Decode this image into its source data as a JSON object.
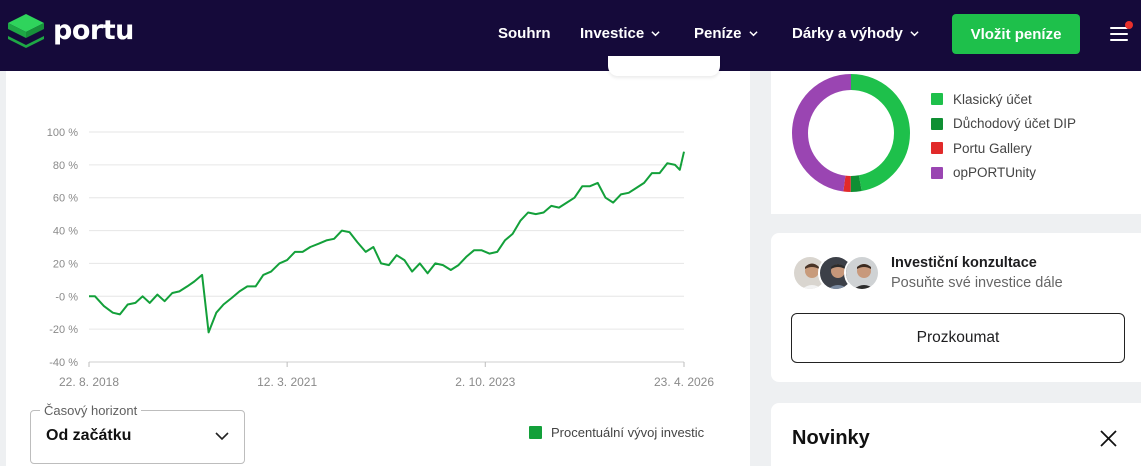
{
  "header": {
    "logo_text": "portu",
    "nav": [
      {
        "label": "Souhrn",
        "dropdown": false
      },
      {
        "label": "Investice",
        "dropdown": true
      },
      {
        "label": "Peníze",
        "dropdown": true
      },
      {
        "label": "Dárky a výhody",
        "dropdown": true
      }
    ],
    "cta_label": "Vložit peníze",
    "menu_icon": "hamburger-icon",
    "notification_dot": true
  },
  "chart_data": {
    "type": "line",
    "title": "",
    "xlabel": "",
    "ylabel": "",
    "ylim": [
      -40,
      100
    ],
    "yticks": [
      100,
      80,
      60,
      40,
      20,
      0,
      -20,
      -40
    ],
    "ytick_labels": [
      "100 %",
      "80 %",
      "60 %",
      "40 %",
      "20 %",
      "-0 %",
      "-20 %",
      "-40 %"
    ],
    "xticks": [
      0,
      0.333,
      0.666,
      1.0
    ],
    "xtick_labels": [
      "22. 8. 2018",
      "12. 3. 2021",
      "2. 10. 2023",
      "23. 4. 2026"
    ],
    "xrange": [
      "2018-08-22",
      "2026-04-23"
    ],
    "grid": "horizontal",
    "series": [
      {
        "name": "Procentuální vývoj investic",
        "color": "#13a03a",
        "points": [
          [
            0.0,
            0
          ],
          [
            0.01,
            0
          ],
          [
            0.025,
            -6
          ],
          [
            0.04,
            -10
          ],
          [
            0.052,
            -11
          ],
          [
            0.065,
            -5
          ],
          [
            0.078,
            -4
          ],
          [
            0.09,
            0
          ],
          [
            0.102,
            -4
          ],
          [
            0.115,
            1
          ],
          [
            0.127,
            -3
          ],
          [
            0.14,
            2
          ],
          [
            0.152,
            3
          ],
          [
            0.165,
            6
          ],
          [
            0.177,
            9
          ],
          [
            0.19,
            13
          ],
          [
            0.201,
            -22
          ],
          [
            0.214,
            -10
          ],
          [
            0.226,
            -5
          ],
          [
            0.24,
            -1
          ],
          [
            0.253,
            3
          ],
          [
            0.266,
            6
          ],
          [
            0.28,
            6
          ],
          [
            0.293,
            13
          ],
          [
            0.306,
            15
          ],
          [
            0.32,
            20
          ],
          [
            0.333,
            22
          ],
          [
            0.346,
            27
          ],
          [
            0.359,
            27
          ],
          [
            0.372,
            30
          ],
          [
            0.386,
            32
          ],
          [
            0.399,
            34
          ],
          [
            0.412,
            35
          ],
          [
            0.425,
            40
          ],
          [
            0.438,
            39
          ],
          [
            0.451,
            33
          ],
          [
            0.465,
            27
          ],
          [
            0.478,
            30
          ],
          [
            0.491,
            20
          ],
          [
            0.504,
            19
          ],
          [
            0.517,
            25
          ],
          [
            0.53,
            22
          ],
          [
            0.543,
            15
          ],
          [
            0.556,
            20
          ],
          [
            0.569,
            14
          ],
          [
            0.582,
            20
          ],
          [
            0.595,
            19
          ],
          [
            0.608,
            16
          ],
          [
            0.621,
            19
          ],
          [
            0.634,
            24
          ],
          [
            0.647,
            28
          ],
          [
            0.66,
            28
          ],
          [
            0.673,
            26
          ],
          [
            0.686,
            27
          ],
          [
            0.699,
            34
          ],
          [
            0.712,
            38
          ],
          [
            0.725,
            46
          ],
          [
            0.738,
            51
          ],
          [
            0.751,
            50
          ],
          [
            0.764,
            51
          ],
          [
            0.777,
            55
          ],
          [
            0.79,
            54
          ],
          [
            0.803,
            57
          ],
          [
            0.816,
            60
          ],
          [
            0.829,
            67
          ],
          [
            0.842,
            67
          ],
          [
            0.855,
            69
          ],
          [
            0.868,
            60
          ],
          [
            0.881,
            57
          ],
          [
            0.894,
            62
          ],
          [
            0.907,
            63
          ],
          [
            0.92,
            66
          ],
          [
            0.933,
            69
          ],
          [
            0.946,
            75
          ],
          [
            0.959,
            75
          ],
          [
            0.972,
            81
          ],
          [
            0.985,
            80
          ],
          [
            0.993,
            77
          ],
          [
            1.0,
            88
          ]
        ]
      }
    ]
  },
  "horizon": {
    "label": "Časový horizont",
    "value": "Od začátku"
  },
  "legend_label": "Procentuální vývoj investic",
  "donut": {
    "type": "pie",
    "segments": [
      {
        "name": "Klasický účet",
        "value": 47,
        "color": "#1ec04b"
      },
      {
        "name": "Důchodový účet DIP",
        "value": 3,
        "color": "#0f8f33"
      },
      {
        "name": "Portu Gallery",
        "value": 2,
        "color": "#e12a2a"
      },
      {
        "name": "opPORTUnity",
        "value": 48,
        "color": "#9a45b2"
      }
    ]
  },
  "consult": {
    "title": "Investiční konzultace",
    "subtitle": "Posuňte své investice dále",
    "button_label": "Prozkoumat"
  },
  "news": {
    "title": "Novinky",
    "close_icon": "close-icon"
  }
}
